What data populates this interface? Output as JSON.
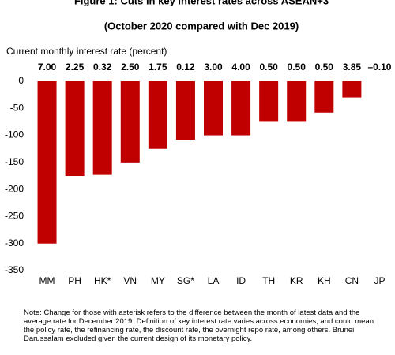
{
  "chart_data": {
    "type": "bar",
    "title": "Figure 1: Cuts in key interest rates across ASEAN+3",
    "subtitle": "(October 2020 compared with Dec 2019)",
    "annotation": "Current monthly  interest rate (percent)",
    "rate_labels": [
      "7.00",
      "2.25",
      "0.32",
      "2.50",
      "1.75",
      "0.12",
      "3.00",
      "4.00",
      "0.50",
      "0.50",
      "0.50",
      "3.85",
      "–0.10"
    ],
    "categories": [
      "MM",
      "PH",
      "HK*",
      "VN",
      "MY",
      "SG*",
      "LA",
      "ID",
      "TH",
      "KR",
      "KH",
      "CN",
      "JP"
    ],
    "values": [
      -300,
      -175,
      -173,
      -150,
      -125,
      -108,
      -100,
      -100,
      -75,
      -75,
      -58,
      -30,
      0
    ],
    "color": "#c00000",
    "ylim": [
      -350,
      0
    ],
    "yticks": [
      0,
      -50,
      -100,
      -150,
      -200,
      -250,
      -300,
      -350
    ],
    "grid": false,
    "note": "Note: Change for those with asterisk refers to the difference between the month of latest data and the average rate for December 2019. Definition of key interest rate varies across economies, and could mean the policy rate, the refinancing rate, the discount rate, the overnight repo rate, among others. Brunei Darussalam excluded given the current design of its monetary policy."
  }
}
